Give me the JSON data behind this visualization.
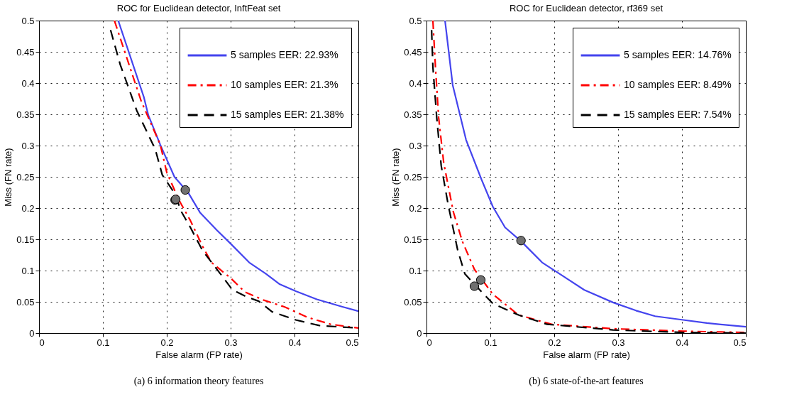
{
  "chart_data": [
    {
      "type": "line",
      "title": "ROC for Euclidean detector, InftFeat set",
      "xlabel": "False alarm (FP rate)",
      "ylabel": "Miss (FN rate)",
      "xlim": [
        0,
        0.5
      ],
      "ylim": [
        0,
        0.5
      ],
      "xticks": [
        0,
        0.1,
        0.2,
        0.3,
        0.4,
        0.5
      ],
      "yticks": [
        0,
        0.05,
        0.1,
        0.15,
        0.2,
        0.25,
        0.3,
        0.35,
        0.4,
        0.45,
        0.5
      ],
      "grid": true,
      "legend": "top right",
      "annotations": [
        "(a) 6 information theory features"
      ],
      "series": [
        {
          "name": "5 samples EER: 22.93%",
          "color": "#4444ee",
          "line_style": "solid",
          "x": [
            0.124,
            0.164,
            0.171,
            0.19,
            0.212,
            0.234,
            0.252,
            0.278,
            0.3,
            0.329,
            0.355,
            0.377,
            0.402,
            0.435,
            0.475,
            0.5
          ],
          "values": [
            0.5,
            0.378,
            0.349,
            0.301,
            0.25,
            0.224,
            0.193,
            0.165,
            0.143,
            0.113,
            0.095,
            0.078,
            0.067,
            0.054,
            0.042,
            0.035
          ]
        },
        {
          "name": "10 samples EER: 21.3%",
          "color": "#ff0000",
          "line_style": "dashdot",
          "x": [
            0.118,
            0.16,
            0.19,
            0.2,
            0.219,
            0.237,
            0.256,
            0.27,
            0.3,
            0.322,
            0.351,
            0.384,
            0.421,
            0.457,
            0.5
          ],
          "values": [
            0.5,
            0.371,
            0.301,
            0.257,
            0.213,
            0.18,
            0.139,
            0.113,
            0.088,
            0.066,
            0.053,
            0.042,
            0.025,
            0.014,
            0.008
          ]
        },
        {
          "name": "15 samples EER: 21.38%",
          "color": "#000000",
          "line_style": "dashed",
          "x": [
            0.112,
            0.127,
            0.153,
            0.182,
            0.193,
            0.212,
            0.223,
            0.237,
            0.256,
            0.289,
            0.303,
            0.325,
            0.344,
            0.365,
            0.402,
            0.439,
            0.5
          ],
          "values": [
            0.485,
            0.43,
            0.356,
            0.294,
            0.253,
            0.224,
            0.194,
            0.169,
            0.132,
            0.088,
            0.069,
            0.058,
            0.051,
            0.034,
            0.021,
            0.012,
            0.008
          ]
        },
        {
          "type": "scatter",
          "color": "#707070",
          "marker": "circle",
          "x": [
            0.229,
            0.213,
            0.214
          ],
          "values": [
            0.229,
            0.213,
            0.214
          ]
        }
      ]
    },
    {
      "type": "line",
      "title": "ROC for Euclidean detector, rf369 set",
      "xlabel": "False alarm (FP rate)",
      "ylabel": "Miss (FN rate)",
      "xlim": [
        0,
        0.5
      ],
      "ylim": [
        0,
        0.5
      ],
      "xticks": [
        0,
        0.1,
        0.2,
        0.3,
        0.4,
        0.5
      ],
      "yticks": [
        0,
        0.05,
        0.1,
        0.15,
        0.2,
        0.25,
        0.3,
        0.35,
        0.4,
        0.45,
        0.5
      ],
      "grid": true,
      "legend": "top right",
      "annotations": [
        "(b) 6 state-of-the-art features"
      ],
      "series": [
        {
          "name": "5 samples EER: 14.76%",
          "color": "#4444ee",
          "line_style": "solid",
          "x": [
            0.029,
            0.041,
            0.062,
            0.086,
            0.104,
            0.123,
            0.148,
            0.181,
            0.214,
            0.247,
            0.292,
            0.328,
            0.358,
            0.402,
            0.439,
            0.5
          ],
          "values": [
            0.5,
            0.397,
            0.309,
            0.246,
            0.202,
            0.169,
            0.147,
            0.113,
            0.091,
            0.069,
            0.049,
            0.036,
            0.027,
            0.021,
            0.016,
            0.01
          ]
        },
        {
          "name": "10 samples EER: 8.49%",
          "color": "#ff0000",
          "line_style": "dashdot",
          "x": [
            0.01,
            0.014,
            0.019,
            0.027,
            0.042,
            0.056,
            0.075,
            0.088,
            0.104,
            0.144,
            0.196,
            0.292,
            0.402,
            0.5
          ],
          "values": [
            0.5,
            0.426,
            0.345,
            0.272,
            0.194,
            0.147,
            0.102,
            0.084,
            0.062,
            0.029,
            0.014,
            0.007,
            0.003,
            0.001
          ]
        },
        {
          "name": "15 samples EER: 7.54%",
          "color": "#000000",
          "line_style": "dashed",
          "x": [
            0.008,
            0.01,
            0.016,
            0.023,
            0.034,
            0.049,
            0.06,
            0.076,
            0.104,
            0.144,
            0.189,
            0.292,
            0.402,
            0.5
          ],
          "values": [
            0.485,
            0.426,
            0.345,
            0.268,
            0.205,
            0.132,
            0.095,
            0.077,
            0.047,
            0.029,
            0.014,
            0.005,
            0.001,
            0
          ]
        },
        {
          "type": "scatter",
          "color": "#707070",
          "marker": "circle",
          "x": [
            0.148,
            0.085,
            0.075
          ],
          "values": [
            0.148,
            0.085,
            0.075
          ]
        }
      ]
    }
  ]
}
